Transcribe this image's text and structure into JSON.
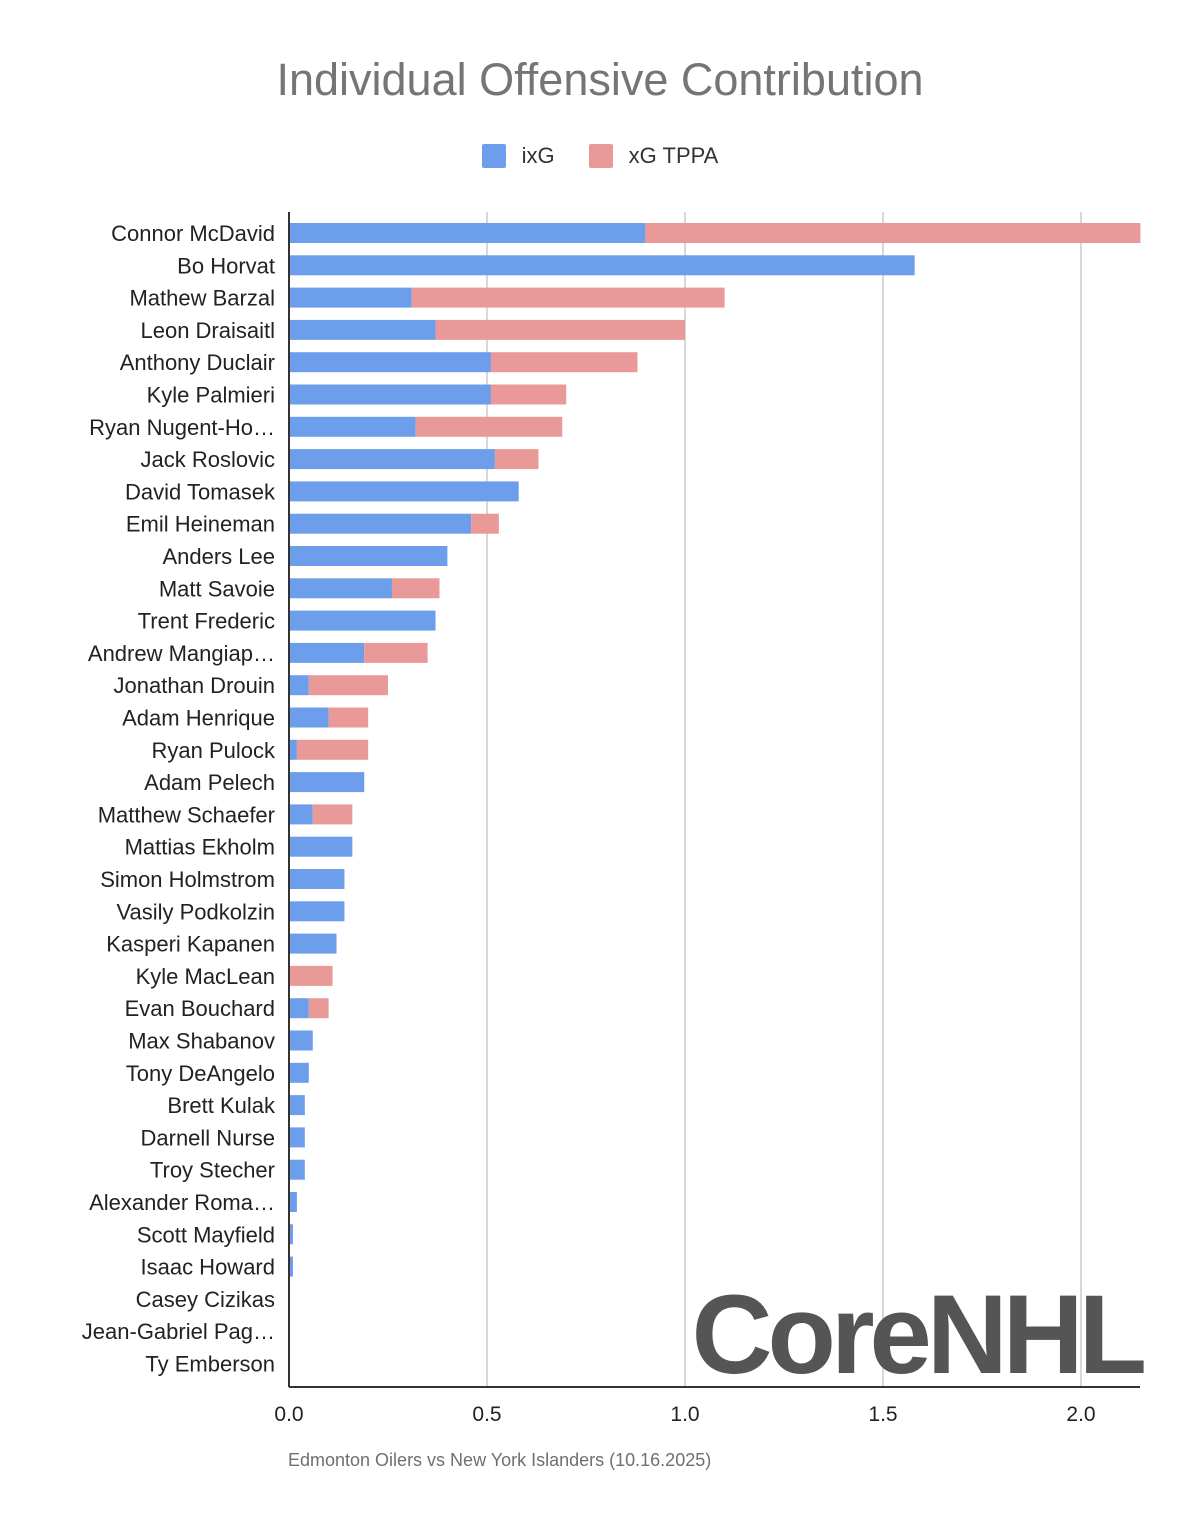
{
  "colors": {
    "ixg": "#6d9eeb",
    "xg_tppa": "#ea9999",
    "gridline": "#cccccc",
    "axis": "#333333",
    "watermark": "#555555"
  },
  "watermark": {
    "text": "CoreNHL"
  },
  "chart_data": {
    "type": "bar",
    "orientation": "horizontal",
    "stacked": true,
    "title": "Individual Offensive Contribution",
    "subtitle": "Edmonton Oilers vs New York Islanders (10.16.2025)",
    "xlabel": "",
    "ylabel": "",
    "xlim": [
      0,
      2.15
    ],
    "x_ticks": [
      0,
      0.5,
      1,
      1.5,
      2
    ],
    "x_tick_labels": [
      "0.0",
      "0.5",
      "1.0",
      "1.5",
      "2.0"
    ],
    "grid": true,
    "legend_position": "top",
    "categories": [
      "Connor McDavid",
      "Bo Horvat",
      "Mathew Barzal",
      "Leon Draisaitl",
      "Anthony Duclair",
      "Kyle Palmieri",
      "Ryan Nugent-Ho…",
      "Jack Roslovic",
      "David Tomasek",
      "Emil Heineman",
      "Anders Lee",
      "Matt Savoie",
      "Trent Frederic",
      "Andrew Mangiap…",
      "Jonathan Drouin",
      "Adam Henrique",
      "Ryan Pulock",
      "Adam Pelech",
      "Matthew Schaefer",
      "Mattias Ekholm",
      "Simon Holmstrom",
      "Vasily Podkolzin",
      "Kasperi Kapanen",
      "Kyle MacLean",
      "Evan Bouchard",
      "Max Shabanov",
      "Tony DeAngelo",
      "Brett Kulak",
      "Darnell Nurse",
      "Troy Stecher",
      "Alexander Roma…",
      "Scott Mayfield",
      "Isaac Howard",
      "Casey Cizikas",
      "Jean-Gabriel Pag…",
      "Ty Emberson"
    ],
    "series": [
      {
        "name": "ixG",
        "color": "#6d9eeb",
        "values": [
          0.9,
          1.58,
          0.31,
          0.37,
          0.51,
          0.51,
          0.32,
          0.52,
          0.58,
          0.46,
          0.4,
          0.26,
          0.37,
          0.19,
          0.05,
          0.1,
          0.02,
          0.19,
          0.06,
          0.16,
          0.14,
          0.14,
          0.12,
          0.0,
          0.05,
          0.06,
          0.05,
          0.04,
          0.04,
          0.04,
          0.02,
          0.01,
          0.01,
          0.0,
          0.0,
          0.0
        ]
      },
      {
        "name": "xG TPPA",
        "color": "#ea9999",
        "values": [
          1.25,
          0.0,
          0.79,
          0.63,
          0.37,
          0.19,
          0.37,
          0.11,
          0.0,
          0.07,
          0.0,
          0.12,
          0.0,
          0.16,
          0.2,
          0.1,
          0.18,
          0.0,
          0.1,
          0.0,
          0.0,
          0.0,
          0.0,
          0.11,
          0.05,
          0.0,
          0.0,
          0.0,
          0.0,
          0.0,
          0.0,
          0.0,
          0.0,
          0.0,
          0.0,
          0.0
        ]
      }
    ]
  }
}
